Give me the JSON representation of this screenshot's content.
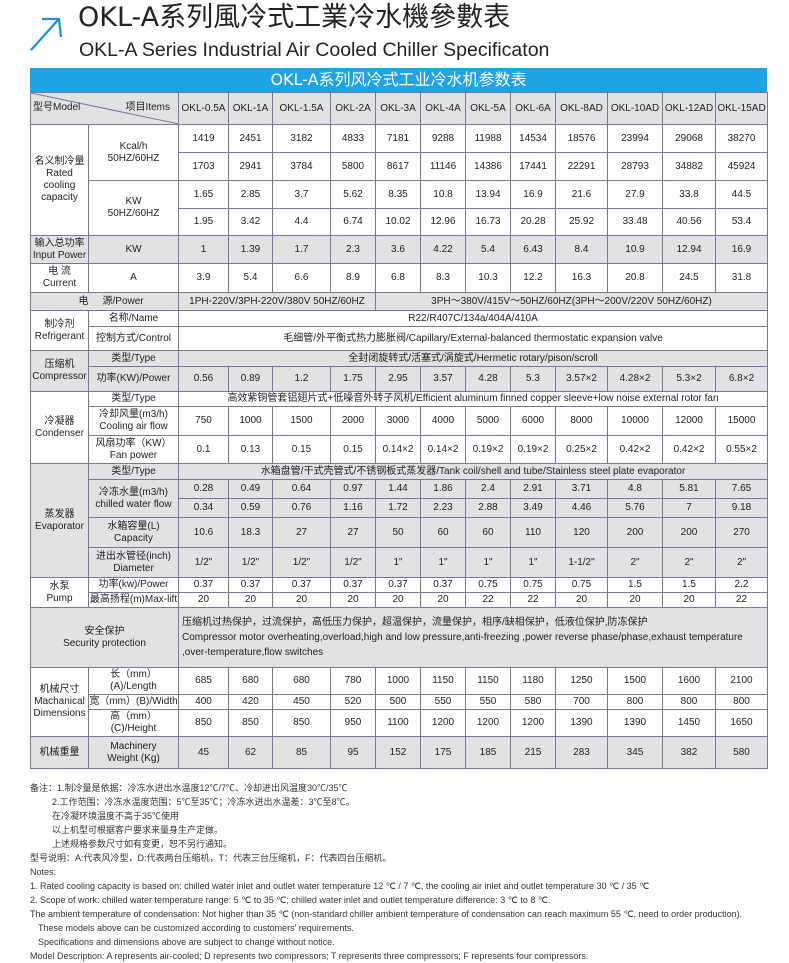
{
  "title_cn": "OKL-A系列風冷式工業冷水機參數表",
  "title_en": "OKL-A Series Industrial Air Cooled Chiller Specificaton",
  "table_title": "OKL-A系列风冷式工业冷水机参数表",
  "colors": {
    "accent": "#1ea3e6",
    "row_grey": "#e2e2e2",
    "border": "#77779a"
  },
  "header": {
    "model_label": "型号Model",
    "items_label": "项目Items",
    "models": [
      "OKL-0.5A",
      "OKL-1A",
      "OKL-1.5A",
      "OKL-2A",
      "OKL-3A",
      "OKL-4A",
      "OKL-5A",
      "OKL-6A",
      "OKL-8AD",
      "OKL-10AD",
      "OKL-12AD",
      "OKL-15AD"
    ]
  },
  "cooling": {
    "label_cn": "名义制冷量",
    "label_en": "Rated cooling capacity",
    "kcal_unit": "Kcal/h",
    "kw_unit": "KW",
    "hz": "50HZ/60HZ",
    "kcal_50": [
      "1419",
      "2451",
      "3182",
      "4833",
      "7181",
      "9288",
      "11988",
      "14534",
      "18576",
      "23994",
      "29068",
      "38270"
    ],
    "kcal_60": [
      "1703",
      "2941",
      "3784",
      "5800",
      "8617",
      "11146",
      "14386",
      "17441",
      "22291",
      "28793",
      "34882",
      "45924"
    ],
    "kw_50": [
      "1.65",
      "2.85",
      "3.7",
      "5.62",
      "8.35",
      "10.8",
      "13.94",
      "16.9",
      "21.6",
      "27.9",
      "33.8",
      "44.5"
    ],
    "kw_60": [
      "1.95",
      "3.42",
      "4.4",
      "6.74",
      "10.02",
      "12.96",
      "16.73",
      "20.28",
      "25.92",
      "33.48",
      "40.56",
      "53.4"
    ]
  },
  "input_power": {
    "label_cn": "输入总功率",
    "label_en": "Input Power",
    "unit": "KW",
    "values": [
      "1",
      "1.39",
      "1.7",
      "2.3",
      "3.6",
      "4.22",
      "5.4",
      "6.43",
      "8.4",
      "10.9",
      "12.94",
      "16.9"
    ]
  },
  "current": {
    "label_cn": "电 流",
    "label_en": "Current",
    "unit": "A",
    "values": [
      "3.9",
      "5.4",
      "6.6",
      "8.9",
      "6.8",
      "8.3",
      "10.3",
      "12.2",
      "16.3",
      "20.8",
      "24.5",
      "31.8"
    ]
  },
  "power": {
    "label_cn": "电",
    "label_en": "源/Power",
    "single": "1PH-220V/3PH-220V/380V 50HZ/60HZ",
    "three": "3PH～380V/415V～50HZ/60HZ(3PH～200V/220V   50HZ/60HZ)"
  },
  "refrigerant": {
    "label_cn": "制冷剂",
    "label_en": "Refrigerant",
    "name_label": "名称/Name",
    "name_value": "R22/R407C/134a/404A/410A",
    "control_label": "控制方式/Control",
    "control_value": "毛细管/外平衡式热力膨胀阀/Capillary/External-balanced thermostatic expansion valve"
  },
  "compressor": {
    "label_cn": "压缩机",
    "label_en": "Compressor",
    "type_label": "类型/Type",
    "type_value": "全封闭旋转式/活塞式/涡旋式/Hermetic rotary/pison/scroll",
    "power_label": "功率(KW)/Power",
    "power": [
      "0.56",
      "0.89",
      "1.2",
      "1.75",
      "2.95",
      "3.57",
      "4.28",
      "5.3",
      "3.57×2",
      "4.28×2",
      "5.3×2",
      "6.8×2"
    ]
  },
  "condenser": {
    "label_cn": "冷凝器",
    "label_en": "Condenser",
    "type_label": "类型/Type",
    "type_value": "高效紫铜管套铝翅片式+低噪音外转子风机/Efficient aluminum finned copper sleeve+low noise external rotor fan",
    "airflow_label_cn": "冷却风量(m3/h)",
    "airflow_label_en": "Cooling air flow",
    "airflow": [
      "750",
      "1000",
      "1500",
      "2000",
      "3000",
      "4000",
      "5000",
      "6000",
      "8000",
      "10000",
      "12000",
      "15000"
    ],
    "fan_label_cn": "风扇功率（KW）",
    "fan_label_en": "Fan power",
    "fan": [
      "0.1",
      "0.13",
      "0.15",
      "0.15",
      "0.14×2",
      "0.14×2",
      "0.19×2",
      "0.19×2",
      "0.25×2",
      "0.42×2",
      "0.42×2",
      "0.55×2"
    ]
  },
  "evaporator": {
    "label_cn": "蒸发器",
    "label_en": "Evaporator",
    "type_label": "类型/Type",
    "type_value": "水箱盘管/干式壳管式/不锈钢板式蒸发器/Tank coil/shell and tube/Stainless steel plate evaporator",
    "flow_label_cn": "冷冻水量(m3/h)",
    "flow_label_en": "chilled water flow",
    "flow_1": [
      "0.28",
      "0.49",
      "0.64",
      "0.97",
      "1.44",
      "1.86",
      "2.4",
      "2.91",
      "3.71",
      "4.8",
      "5.81",
      "7.65"
    ],
    "flow_2": [
      "0.34",
      "0.59",
      "0.76",
      "1.16",
      "1.72",
      "2.23",
      "2.88",
      "3.49",
      "4.46",
      "5.76",
      "7",
      "9.18"
    ],
    "capacity_label_cn": "水箱容量(L)",
    "capacity_label_en": "Capacity",
    "capacity": [
      "10.6",
      "18.3",
      "27",
      "27",
      "50",
      "60",
      "60",
      "110",
      "120",
      "200",
      "200",
      "270"
    ],
    "diameter_label_cn": "进出水管径(inch)",
    "diameter_label_en": "Diameter",
    "diameter": [
      "1/2\"",
      "1/2\"",
      "1/2\"",
      "1/2\"",
      "1\"",
      "1\"",
      "1\"",
      "1\"",
      "1-1/2\"",
      "2\"",
      "2\"",
      "2\""
    ]
  },
  "pump": {
    "label_cn": "水泵",
    "label_en": "Pump",
    "power_label": "功率(kw)/Power",
    "power": [
      "0.37",
      "0.37",
      "0.37",
      "0.37",
      "0.37",
      "0.37",
      "0.75",
      "0.75",
      "0.75",
      "1.5",
      "1.5",
      "2.2"
    ],
    "lift_label": "最高扬程(m)Max-lift",
    "lift": [
      "20",
      "20",
      "20",
      "20",
      "20",
      "20",
      "22",
      "22",
      "20",
      "20",
      "20",
      "22"
    ]
  },
  "security": {
    "label_cn": "安全保护",
    "label_en": "Security protection",
    "text_cn": "压缩机过热保护，过流保护，高低压力保护，超温保护，流量保护，相序/缺相保护，低液位保护,防冻保护",
    "text_en": "Compressor motor overheating,overload,high and low pressure,anti-freezing ,power reverse phase/phase,exhaust temperature ,over-temperature,flow switches"
  },
  "dimensions": {
    "label_cn": "机械尺寸",
    "label_en_1": "Machanical",
    "label_en_2": "Dimensions",
    "length_label": "长（mm）(A)/Length",
    "length": [
      "685",
      "680",
      "680",
      "780",
      "1000",
      "1150",
      "1150",
      "1180",
      "1250",
      "1500",
      "1600",
      "2100"
    ],
    "width_label": "宽（mm）(B)/Width",
    "width": [
      "400",
      "420",
      "450",
      "520",
      "500",
      "550",
      "550",
      "580",
      "700",
      "800",
      "800",
      "800"
    ],
    "height_label": "高（mm）(C)/Height",
    "height": [
      "850",
      "850",
      "850",
      "950",
      "1100",
      "1200",
      "1200",
      "1200",
      "1390",
      "1390",
      "1450",
      "1650"
    ]
  },
  "weight": {
    "label_cn": "机械重量",
    "label_en": "Machinery Weight (Kg)",
    "values": [
      "45",
      "62",
      "85",
      "95",
      "152",
      "175",
      "185",
      "215",
      "283",
      "345",
      "382",
      "580"
    ]
  },
  "notes": [
    "备注：1.制冷量是依据：冷冻水进出水温度12℃/7℃、冷却进出风温度30℃/35℃",
    "2.工作范围：冷冻水温度范围：5℃至35℃；冷冻水进出水温差：3℃至8℃。",
    "在冷凝环境温度不高于35℃使用",
    "以上机型可根据客户要求来量身生产定做。",
    "上述规格参数尺寸如有变更，恕不另行通知。",
    "型号说明：A:代表风冷型，D:代表两台压缩机，T：代表三台压缩机，F：代表四台压缩机。",
    "Notes:",
    "1. Rated cooling capacity is based on: chilled water inlet and outlet water temperature 12 ℃ / 7 ℃, the cooling air inlet and outlet temperature 30 ℃ / 35 ℃",
    "2. Scope of work: chilled water temperature range: 5 ℃ to 35 ℃; chilled water inlet and outlet temperature difference: 3 ℃ to 8 ℃.",
    "The ambient temperature of condensation: Not higher than 35 ℃ (non-standard chiller ambient temperature of condensation can reach maximum 55 ℃, need to order production).",
    "These models above can be customized according to customers’ requirements.",
    "Specifications and dimensions above are subject to change without notice.",
    "Model Description: A represents air-cooled; D represents two compressors; T represents three compressors; F represents four compressors."
  ]
}
